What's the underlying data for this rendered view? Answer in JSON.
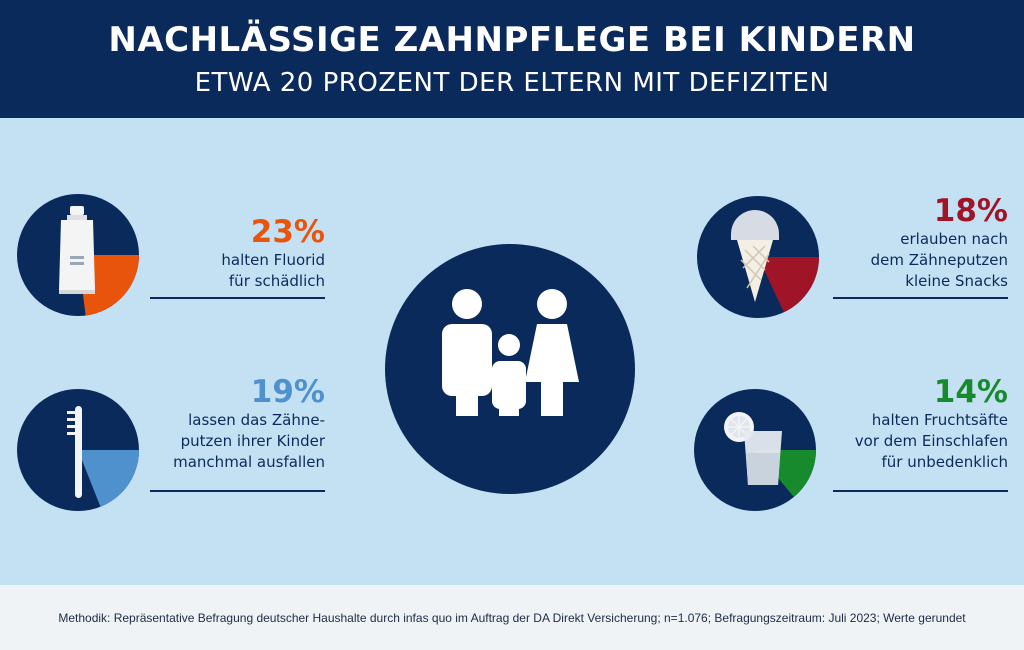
{
  "header": {
    "title": "NACHLÄSSIGE ZAHNPFLEGE BEI KINDERN",
    "subtitle": "ETWA 20 PROZENT DER ELTERN MIT DEFIZITEN"
  },
  "footer": {
    "methodik": "Methodik: Repräsentative Befragung deutscher Haushalte durch infas quo im Auftrag der DA Direkt Versicherung; n=1.076; Befragungszeitraum: Juli 2023; Werte gerundet"
  },
  "colors": {
    "navy": "#0b2a5c",
    "light_blue_bg": "#c4e1f4"
  },
  "chart_data": [
    {
      "type": "pie",
      "values": [
        23,
        77
      ],
      "percent_label": "23%",
      "label": "halten Fluorid\nfür schädlich",
      "color": "#e8540c",
      "icon": "toothpaste-icon"
    },
    {
      "type": "pie",
      "values": [
        19,
        81
      ],
      "percent_label": "19%",
      "label": "lassen das Zähne-\nputzen ihrer Kinder\nmanchmal ausfallen",
      "color": "#4e91cc",
      "icon": "toothbrush-icon"
    },
    {
      "type": "pie",
      "values": [
        18,
        82
      ],
      "percent_label": "18%",
      "label": "erlauben nach\ndem Zähneputzen\nkleine Snacks",
      "color": "#a01428",
      "icon": "ice-cream-icon"
    },
    {
      "type": "pie",
      "values": [
        14,
        86
      ],
      "percent_label": "14%",
      "label": "halten Fruchtsäfte\nvor dem Einschlafen\nfür unbedenklich",
      "color": "#188a2e",
      "icon": "juice-glass-icon"
    }
  ]
}
